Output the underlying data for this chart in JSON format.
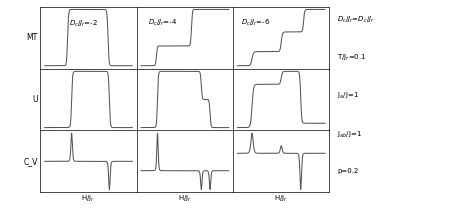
{
  "col_labels": [
    "D_c/J_r=-2",
    "D_c/J_r=-4",
    "D_c/J_r=-6"
  ],
  "row_labels": [
    "MT",
    "U",
    "C_V"
  ],
  "xlabel": "H/J_r",
  "legend_lines": [
    "D_c/J_r=D_c/J_r",
    "T/J_r=0.1",
    "J_a/J=1",
    "J_ab/J=1",
    "p=0.2"
  ],
  "line_color": "#555555",
  "line_width": 0.75,
  "spine_lw": 0.5
}
